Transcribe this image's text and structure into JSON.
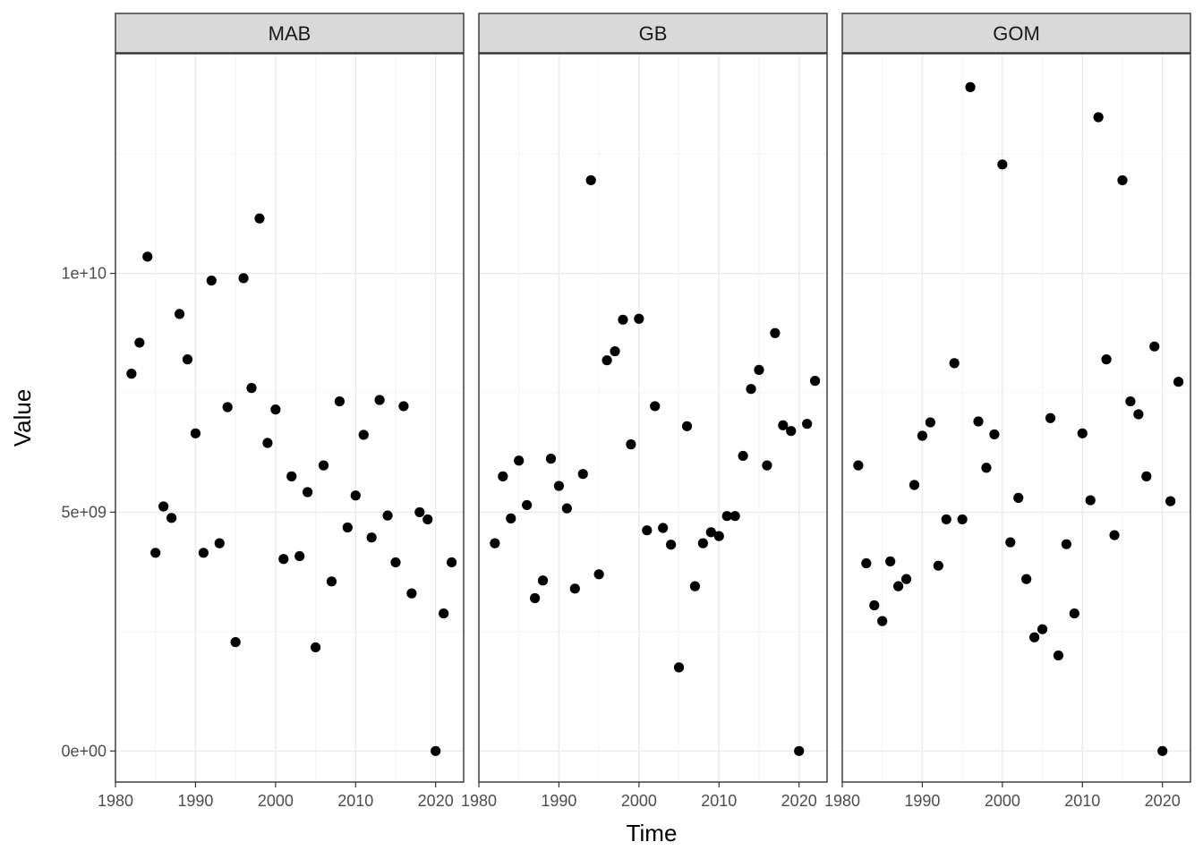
{
  "chart_data": {
    "type": "scatter",
    "xlabel": "Time",
    "ylabel": "Value",
    "xlim": [
      1980,
      2023.5
    ],
    "ylim": [
      -650000000,
      14600000000
    ],
    "x_ticks": [
      1980,
      1990,
      2000,
      2010,
      2020
    ],
    "x_tick_labels": [
      "1980",
      "1990",
      "2000",
      "2010",
      "2020"
    ],
    "y_ticks": [
      0,
      5000000000,
      10000000000
    ],
    "y_tick_labels": [
      "0e+00",
      "5e+09",
      "1e+10"
    ],
    "y_minor": [
      2500000000,
      7500000000,
      12500000000
    ],
    "point_color": "#000000",
    "panels": [
      {
        "name": "MAB",
        "points": [
          [
            1982,
            7900000000.0
          ],
          [
            1983,
            8550000000.0
          ],
          [
            1984,
            10350000000.0
          ],
          [
            1985,
            4150000000.0
          ],
          [
            1986,
            5120000000.0
          ],
          [
            1987,
            4880000000.0
          ],
          [
            1988,
            9150000000.0
          ],
          [
            1989,
            8200000000.0
          ],
          [
            1990,
            6650000000.0
          ],
          [
            1991,
            4150000000.0
          ],
          [
            1992,
            9850000000.0
          ],
          [
            1993,
            4350000000.0
          ],
          [
            1994,
            7200000000.0
          ],
          [
            1995,
            2280000000.0
          ],
          [
            1996,
            9900000000.0
          ],
          [
            1997,
            7600000000.0
          ],
          [
            1998,
            11150000000.0
          ],
          [
            1999,
            6450000000.0
          ],
          [
            2000,
            7150000000.0
          ],
          [
            2001,
            4020000000.0
          ],
          [
            2002,
            5750000000.0
          ],
          [
            2003,
            4080000000.0
          ],
          [
            2004,
            5420000000.0
          ],
          [
            2005,
            2170000000.0
          ],
          [
            2006,
            5980000000.0
          ],
          [
            2007,
            3550000000.0
          ],
          [
            2008,
            7320000000.0
          ],
          [
            2009,
            4680000000.0
          ],
          [
            2010,
            5350000000.0
          ],
          [
            2011,
            6620000000.0
          ],
          [
            2012,
            4470000000.0
          ],
          [
            2013,
            7350000000.0
          ],
          [
            2014,
            4930000000.0
          ],
          [
            2015,
            3950000000.0
          ],
          [
            2016,
            7220000000.0
          ],
          [
            2017,
            3300000000.0
          ],
          [
            2018,
            5000000000.0
          ],
          [
            2019,
            4850000000.0
          ],
          [
            2020,
            0.0
          ],
          [
            2021,
            2880000000.0
          ],
          [
            2022,
            3950000000.0
          ]
        ]
      },
      {
        "name": "GB",
        "points": [
          [
            1982,
            4350000000.0
          ],
          [
            1983,
            5750000000.0
          ],
          [
            1984,
            4870000000.0
          ],
          [
            1985,
            6080000000.0
          ],
          [
            1986,
            5150000000.0
          ],
          [
            1987,
            3200000000.0
          ],
          [
            1988,
            3570000000.0
          ],
          [
            1989,
            6120000000.0
          ],
          [
            1990,
            5550000000.0
          ],
          [
            1991,
            5080000000.0
          ],
          [
            1992,
            3400000000.0
          ],
          [
            1993,
            5800000000.0
          ],
          [
            1994,
            11950000000.0
          ],
          [
            1995,
            3700000000.0
          ],
          [
            1996,
            8180000000.0
          ],
          [
            1997,
            8370000000.0
          ],
          [
            1998,
            9030000000.0
          ],
          [
            1999,
            6420000000.0
          ],
          [
            2000,
            9050000000.0
          ],
          [
            2001,
            4620000000.0
          ],
          [
            2002,
            7220000000.0
          ],
          [
            2003,
            4670000000.0
          ],
          [
            2004,
            4320000000.0
          ],
          [
            2005,
            1750000000.0
          ],
          [
            2006,
            6800000000.0
          ],
          [
            2007,
            3450000000.0
          ],
          [
            2008,
            4350000000.0
          ],
          [
            2009,
            4580000000.0
          ],
          [
            2010,
            4500000000.0
          ],
          [
            2011,
            4920000000.0
          ],
          [
            2012,
            4920000000.0
          ],
          [
            2013,
            6180000000.0
          ],
          [
            2014,
            7580000000.0
          ],
          [
            2015,
            7980000000.0
          ],
          [
            2016,
            5980000000.0
          ],
          [
            2017,
            8750000000.0
          ],
          [
            2018,
            6820000000.0
          ],
          [
            2019,
            6700000000.0
          ],
          [
            2020,
            0.0
          ],
          [
            2021,
            6850000000.0
          ],
          [
            2022,
            7750000000.0
          ]
        ]
      },
      {
        "name": "GOM",
        "points": [
          [
            1982,
            5980000000.0
          ],
          [
            1983,
            3930000000.0
          ],
          [
            1984,
            3050000000.0
          ],
          [
            1985,
            2720000000.0
          ],
          [
            1986,
            3970000000.0
          ],
          [
            1987,
            3450000000.0
          ],
          [
            1988,
            3600000000.0
          ],
          [
            1989,
            5570000000.0
          ],
          [
            1990,
            6600000000.0
          ],
          [
            1991,
            6880000000.0
          ],
          [
            1992,
            3880000000.0
          ],
          [
            1993,
            4850000000.0
          ],
          [
            1994,
            8120000000.0
          ],
          [
            1995,
            4850000000.0
          ],
          [
            1996,
            13900000000.0
          ],
          [
            1997,
            6900000000.0
          ],
          [
            1998,
            5930000000.0
          ],
          [
            1999,
            6630000000.0
          ],
          [
            2000,
            12280000000.0
          ],
          [
            2001,
            4370000000.0
          ],
          [
            2002,
            5300000000.0
          ],
          [
            2003,
            3600000000.0
          ],
          [
            2004,
            2380000000.0
          ],
          [
            2005,
            2550000000.0
          ],
          [
            2006,
            6970000000.0
          ],
          [
            2007,
            2000000000.0
          ],
          [
            2008,
            4330000000.0
          ],
          [
            2009,
            2880000000.0
          ],
          [
            2010,
            6650000000.0
          ],
          [
            2011,
            5250000000.0
          ],
          [
            2012,
            13270000000.0
          ],
          [
            2013,
            8200000000.0
          ],
          [
            2014,
            4520000000.0
          ],
          [
            2015,
            11950000000.0
          ],
          [
            2016,
            7320000000.0
          ],
          [
            2017,
            7050000000.0
          ],
          [
            2018,
            5750000000.0
          ],
          [
            2019,
            8470000000.0
          ],
          [
            2020,
            0.0
          ],
          [
            2021,
            5230000000.0
          ],
          [
            2022,
            7730000000.0
          ]
        ]
      }
    ]
  }
}
